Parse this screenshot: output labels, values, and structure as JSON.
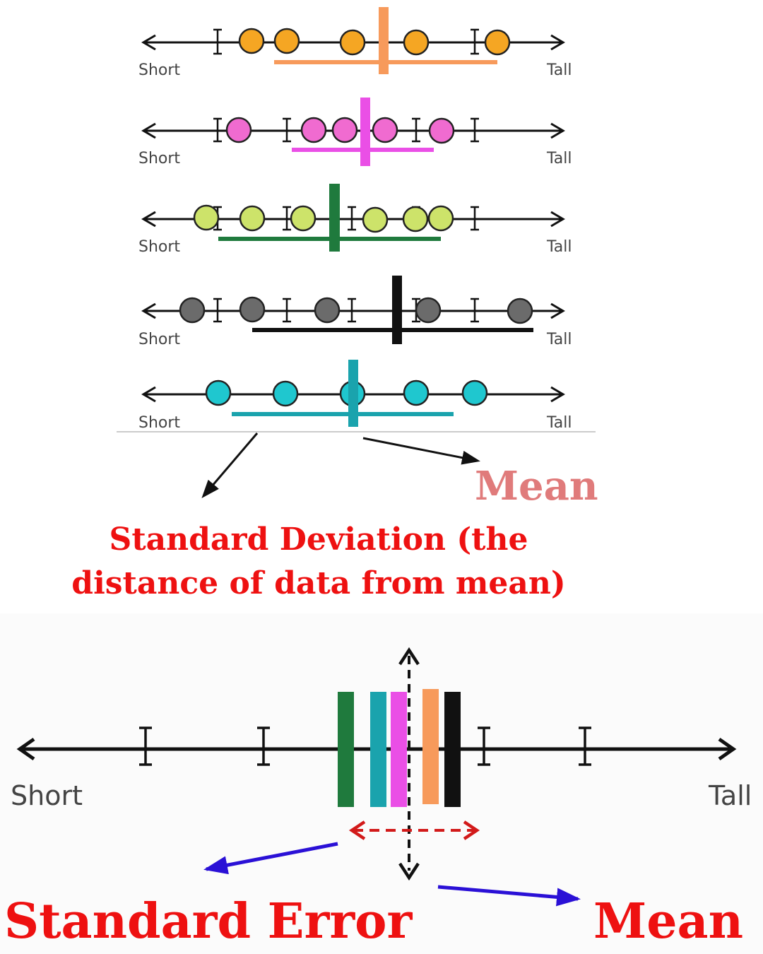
{
  "colors": {
    "orange": "#f5a623",
    "orange_mean": "#f79a5b",
    "pink": "#f06bd0",
    "pink_mean": "#ea4fe6",
    "lime": "#cde36a",
    "green_mean": "#1f7a3d",
    "gray": "#6b6b6b",
    "black": "#111111",
    "teal": "#1fc7cf",
    "teal_mean": "#1aa3ad",
    "red_text": "#ee1111",
    "mean_pink_text": "#e07b7b",
    "blue_arrow": "#2a10d6",
    "red_arrow": "#d21a1a"
  },
  "top": {
    "short_label": "Short",
    "tall_label": "Tall",
    "rows": [
      {
        "name": "orange",
        "fill": "#f5a623",
        "mean": "#f79a5b"
      },
      {
        "name": "pink",
        "fill": "#f06bd0",
        "mean": "#ea4fe6"
      },
      {
        "name": "lime",
        "fill": "#cde36a",
        "mean": "#1f7a3d"
      },
      {
        "name": "gray",
        "fill": "#6b6b6b",
        "mean": "#111111"
      },
      {
        "name": "teal",
        "fill": "#1fc7cf",
        "mean": "#1aa3ad"
      }
    ],
    "mean_label": "Mean",
    "sd_label_line1": "Standard Deviation (the",
    "sd_label_line2": "distance of data from mean)"
  },
  "bottom": {
    "short_label": "Short",
    "tall_label": "Tall",
    "se_label": "Standard Error",
    "mean_label": "Mean"
  }
}
